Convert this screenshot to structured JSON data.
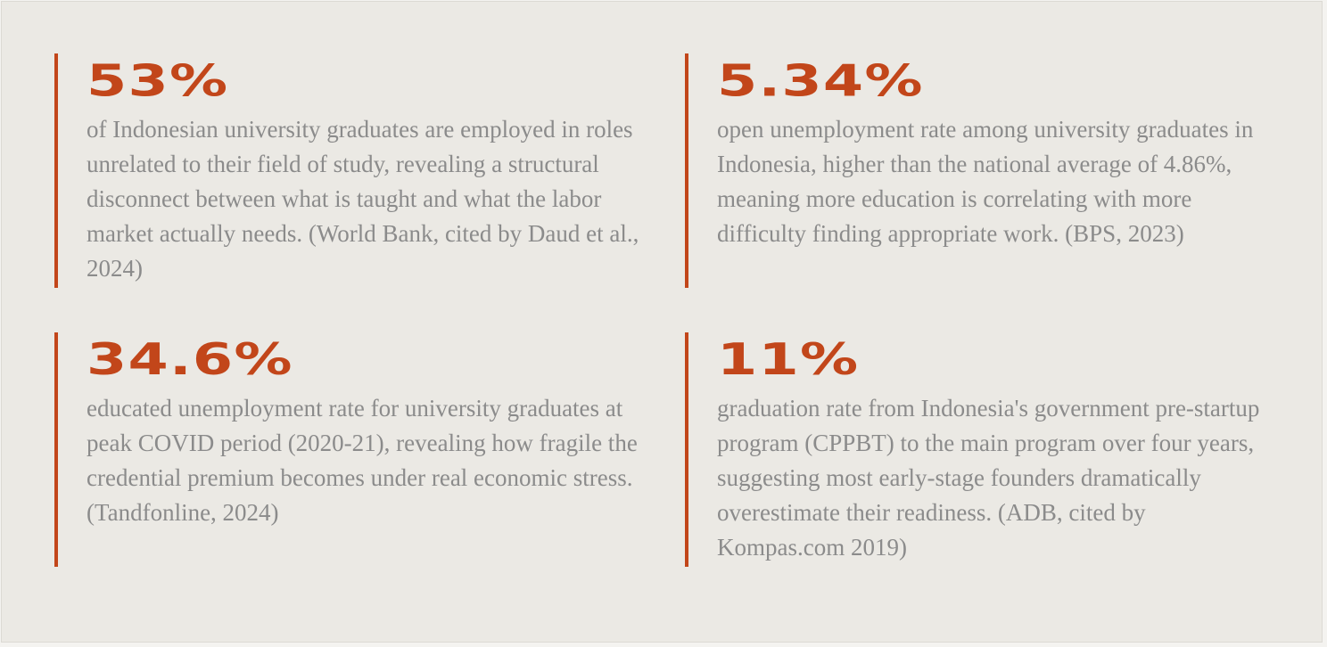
{
  "stats": [
    {
      "figure": "53%",
      "text": "of Indonesian university graduates are employed in roles unrelated to their field of study, revealing a structural disconnect between what is taught and what the labor market actually needs. (World Bank, cited by Daud et al., 2024)"
    },
    {
      "figure": "5.34%",
      "text": "open unemployment rate among university graduates in Indonesia, higher than the national average of 4.86%, meaning more education is correlating with more difficulty finding appropriate work. (BPS, 2023)"
    },
    {
      "figure": "34.6%",
      "text": "educated unemployment rate for university graduates at peak COVID period (2020-21), revealing how fragile the credential premium becomes under real economic stress. (Tandfonline, 2024)"
    },
    {
      "figure": "11%",
      "text": "graduation rate from Indonesia's government pre-startup program (CPPBT) to the main program over four years, suggesting most early-stage founders dramatically overestimate their readiness. (ADB, cited by Kompas.com 2019)"
    }
  ]
}
